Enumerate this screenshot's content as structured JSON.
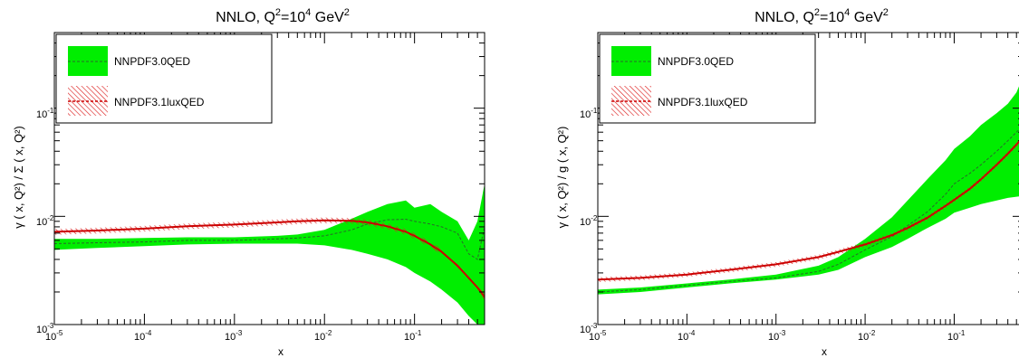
{
  "chart_data": [
    {
      "type": "area",
      "title": "NNLO, Q²=10⁴ GeV²",
      "title_parts": {
        "base": "NNLO, Q",
        "sup1": "2",
        "mid": "=10",
        "sup2": "4",
        "unit": " GeV",
        "sup3": "2"
      },
      "xlabel": "x",
      "ylabel": "γ ( x, Q²) / Σ ( x, Q²)",
      "xscale": "log",
      "yscale": "log",
      "xlim": [
        1e-05,
        0.6
      ],
      "ylim": [
        0.001,
        0.5
      ],
      "x_ticks": [
        {
          "exp": "-5",
          "value": 1e-05
        },
        {
          "exp": "-4",
          "value": 0.0001
        },
        {
          "exp": "-3",
          "value": 0.001
        },
        {
          "exp": "-2",
          "value": 0.01
        },
        {
          "exp": "-1",
          "value": 0.1
        }
      ],
      "y_ticks": [
        {
          "exp": "-3",
          "value": 0.001
        },
        {
          "exp": "-2",
          "value": 0.01
        },
        {
          "exp": "-1",
          "value": 0.1
        }
      ],
      "tick_base": "10",
      "legend_position": "top-left",
      "series": [
        {
          "name": "NNPDF3.0QED",
          "color": "#00ee00",
          "style": "green band, dashed central line",
          "x": [
            1e-05,
            3e-05,
            0.0001,
            0.0003,
            0.001,
            0.003,
            0.005,
            0.01,
            0.02,
            0.03,
            0.05,
            0.08,
            0.1,
            0.15,
            0.2,
            0.3,
            0.4,
            0.5,
            0.6
          ],
          "upper": [
            0.0062,
            0.0062,
            0.0063,
            0.0064,
            0.0064,
            0.0066,
            0.0068,
            0.0075,
            0.0095,
            0.011,
            0.013,
            0.014,
            0.012,
            0.013,
            0.011,
            0.009,
            0.006,
            0.009,
            0.02
          ],
          "central": [
            0.0056,
            0.0057,
            0.0058,
            0.006,
            0.006,
            0.0062,
            0.0063,
            0.0066,
            0.0075,
            0.0085,
            0.0093,
            0.0094,
            0.009,
            0.0085,
            0.008,
            0.007,
            0.0045,
            0.004,
            0.008
          ],
          "lower": [
            0.0049,
            0.0051,
            0.0053,
            0.0055,
            0.0056,
            0.0056,
            0.0056,
            0.0054,
            0.0049,
            0.0045,
            0.004,
            0.0034,
            0.003,
            0.0025,
            0.0021,
            0.0016,
            0.0012,
            0.001,
            0.001
          ]
        },
        {
          "name": "NNPDF3.1luxQED",
          "color": "#cc0000",
          "style": "red hatched band, dashed central line",
          "x": [
            1e-05,
            3e-05,
            0.0001,
            0.0003,
            0.001,
            0.003,
            0.005,
            0.01,
            0.02,
            0.03,
            0.05,
            0.08,
            0.1,
            0.15,
            0.2,
            0.3,
            0.4,
            0.5,
            0.6
          ],
          "central": [
            0.0072,
            0.0074,
            0.0077,
            0.0081,
            0.0084,
            0.0088,
            0.009,
            0.0092,
            0.0091,
            0.0088,
            0.0081,
            0.0072,
            0.0066,
            0.0055,
            0.0047,
            0.0035,
            0.0027,
            0.0022,
            0.0018
          ],
          "rel_width": 0.06
        }
      ]
    },
    {
      "type": "area",
      "title": "NNLO, Q²=10⁴ GeV²",
      "title_parts": {
        "base": "NNLO, Q",
        "sup1": "2",
        "mid": "=10",
        "sup2": "4",
        "unit": " GeV",
        "sup3": "2"
      },
      "xlabel": "x",
      "ylabel": "γ ( x, Q²) / g ( x, Q²)",
      "xscale": "log",
      "yscale": "log",
      "xlim": [
        1e-05,
        0.6
      ],
      "ylim": [
        0.001,
        0.5
      ],
      "x_ticks": [
        {
          "exp": "-5",
          "value": 1e-05
        },
        {
          "exp": "-4",
          "value": 0.0001
        },
        {
          "exp": "-3",
          "value": 0.001
        },
        {
          "exp": "-2",
          "value": 0.01
        },
        {
          "exp": "-1",
          "value": 0.1
        }
      ],
      "y_ticks": [
        {
          "exp": "-3",
          "value": 0.001
        },
        {
          "exp": "-2",
          "value": 0.01
        },
        {
          "exp": "-1",
          "value": 0.1
        }
      ],
      "tick_base": "10",
      "legend_position": "top-left",
      "series": [
        {
          "name": "NNPDF3.0QED",
          "color": "#00ee00",
          "style": "green band, dashed central line",
          "x": [
            1e-05,
            3e-05,
            0.0001,
            0.0003,
            0.001,
            0.003,
            0.005,
            0.01,
            0.02,
            0.03,
            0.05,
            0.08,
            0.1,
            0.15,
            0.2,
            0.3,
            0.4,
            0.5,
            0.6
          ],
          "upper": [
            0.0021,
            0.0022,
            0.0024,
            0.0026,
            0.0029,
            0.0035,
            0.0042,
            0.0062,
            0.0098,
            0.014,
            0.022,
            0.033,
            0.042,
            0.055,
            0.07,
            0.09,
            0.11,
            0.14,
            0.2
          ],
          "central": [
            0.002,
            0.0021,
            0.0023,
            0.0025,
            0.0027,
            0.0031,
            0.0036,
            0.0049,
            0.0065,
            0.0082,
            0.011,
            0.016,
            0.02,
            0.025,
            0.03,
            0.04,
            0.05,
            0.06,
            0.07
          ],
          "lower": [
            0.0019,
            0.002,
            0.0022,
            0.0024,
            0.0026,
            0.0029,
            0.0032,
            0.0042,
            0.0052,
            0.0062,
            0.0078,
            0.0095,
            0.0108,
            0.012,
            0.013,
            0.014,
            0.0148,
            0.0152,
            0.0155
          ]
        },
        {
          "name": "NNPDF3.1luxQED",
          "color": "#cc0000",
          "style": "red hatched band, dashed central line",
          "x": [
            1e-05,
            3e-05,
            0.0001,
            0.0003,
            0.001,
            0.003,
            0.005,
            0.01,
            0.02,
            0.03,
            0.05,
            0.08,
            0.1,
            0.15,
            0.2,
            0.3,
            0.4,
            0.5,
            0.6
          ],
          "central": [
            0.0026,
            0.0027,
            0.0029,
            0.0032,
            0.0036,
            0.0042,
            0.0047,
            0.0055,
            0.0067,
            0.0078,
            0.0097,
            0.0125,
            0.0142,
            0.018,
            0.022,
            0.03,
            0.038,
            0.046,
            0.055
          ],
          "rel_width": 0.05
        }
      ]
    }
  ]
}
